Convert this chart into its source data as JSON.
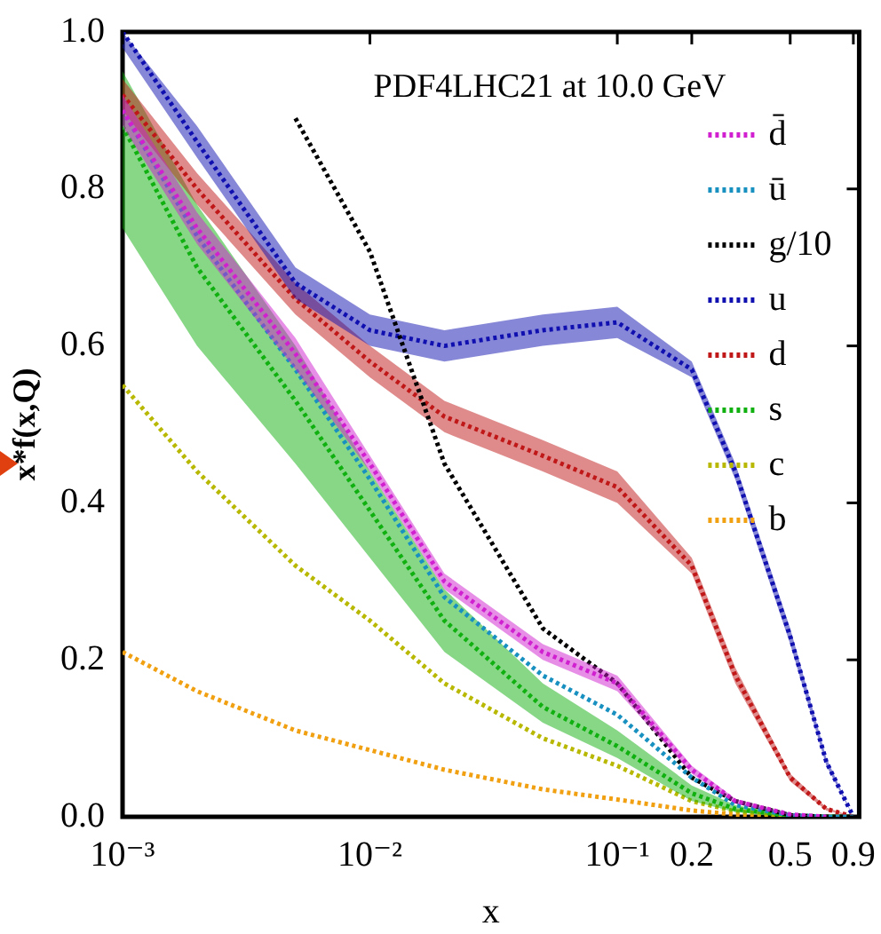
{
  "chart_data": {
    "type": "line",
    "title": "PDF4LHC21 at 10.0 GeV",
    "xlabel": "x",
    "ylabel": "x*f(x,Q)",
    "log": "x",
    "x": [
      0.001,
      0.002,
      0.005,
      0.01,
      0.02,
      0.05,
      0.1,
      0.2,
      0.3,
      0.5,
      0.7,
      0.9
    ],
    "xlim": [
      0.001,
      0.95
    ],
    "xticks": [
      {
        "value": 0.001,
        "label": "10⁻³"
      },
      {
        "value": 0.01,
        "label": "10⁻²"
      },
      {
        "value": 0.1,
        "label": "10⁻¹"
      },
      0.2,
      0.5,
      0.9
    ],
    "ylim": [
      0,
      1
    ],
    "yticks": [
      {
        "value": 0,
        "label": "0.0"
      },
      0.2,
      0.4,
      0.6,
      0.8,
      {
        "value": 1,
        "label": "1.0"
      }
    ],
    "grid": false,
    "legend": "top right",
    "marker": "none",
    "line_style": "dotted",
    "series": [
      {
        "name": "d̄",
        "color": "#d020d0",
        "values": [
          0.9,
          0.75,
          0.59,
          0.45,
          0.3,
          0.21,
          0.17,
          0.06,
          0.02,
          0.003,
          0,
          null
        ],
        "lower": [
          0.88,
          0.73,
          0.57,
          0.44,
          0.29,
          0.2,
          0.16,
          0.055,
          0.017,
          0.002,
          0,
          null
        ],
        "upper": [
          0.92,
          0.77,
          0.61,
          0.46,
          0.31,
          0.22,
          0.18,
          0.065,
          0.023,
          0.004,
          0,
          null
        ]
      },
      {
        "name": "ū",
        "color": "#1890c0",
        "values": [
          0.9,
          0.74,
          0.57,
          0.43,
          0.28,
          0.18,
          0.13,
          0.05,
          0.015,
          0.002,
          0,
          0
        ]
      },
      {
        "name": "g/10",
        "color": "#000000",
        "values": [
          null,
          null,
          0.89,
          0.72,
          0.45,
          0.24,
          0.17,
          0.05,
          0.02,
          0.002,
          0,
          0
        ]
      },
      {
        "name": "u",
        "color": "#1010b0",
        "values": [
          1,
          0.86,
          0.68,
          0.62,
          0.6,
          0.62,
          0.63,
          0.57,
          0.44,
          0.23,
          0.07,
          0
        ],
        "lower": [
          0.98,
          0.84,
          0.66,
          0.6,
          0.58,
          0.6,
          0.61,
          0.56,
          0.43,
          0.22,
          0.065,
          0
        ],
        "upper": [
          1,
          0.88,
          0.7,
          0.64,
          0.62,
          0.64,
          0.65,
          0.58,
          0.45,
          0.24,
          0.075,
          0
        ]
      },
      {
        "name": "d",
        "color": "#c01818",
        "values": [
          0.92,
          0.8,
          0.66,
          0.58,
          0.51,
          0.46,
          0.42,
          0.32,
          0.18,
          0.05,
          0.01,
          0
        ],
        "lower": [
          0.9,
          0.78,
          0.64,
          0.56,
          0.49,
          0.44,
          0.4,
          0.31,
          0.17,
          0.045,
          0.008,
          0
        ],
        "upper": [
          0.94,
          0.82,
          0.68,
          0.6,
          0.53,
          0.48,
          0.44,
          0.33,
          0.19,
          0.055,
          0.012,
          0
        ]
      },
      {
        "name": "s",
        "color": "#10b010",
        "values": [
          0.88,
          0.7,
          0.53,
          0.39,
          0.25,
          0.14,
          0.09,
          0.03,
          0.01,
          0.001,
          0,
          0
        ],
        "lower": [
          0.75,
          0.6,
          0.45,
          0.33,
          0.21,
          0.12,
          0.075,
          0.02,
          0.006,
          0,
          0,
          0
        ],
        "upper": [
          0.95,
          0.78,
          0.6,
          0.44,
          0.29,
          0.17,
          0.11,
          0.04,
          0.015,
          0.002,
          0,
          0
        ]
      },
      {
        "name": "c",
        "color": "#b8b800",
        "values": [
          0.55,
          0.44,
          0.32,
          0.25,
          0.17,
          0.1,
          0.065,
          0.02,
          0.007,
          0.001,
          0,
          0
        ]
      },
      {
        "name": "b",
        "color": "#f0a010",
        "values": [
          0.21,
          0.16,
          0.11,
          0.085,
          0.06,
          0.035,
          0.022,
          0.008,
          0.003,
          0,
          null,
          null
        ]
      }
    ]
  }
}
